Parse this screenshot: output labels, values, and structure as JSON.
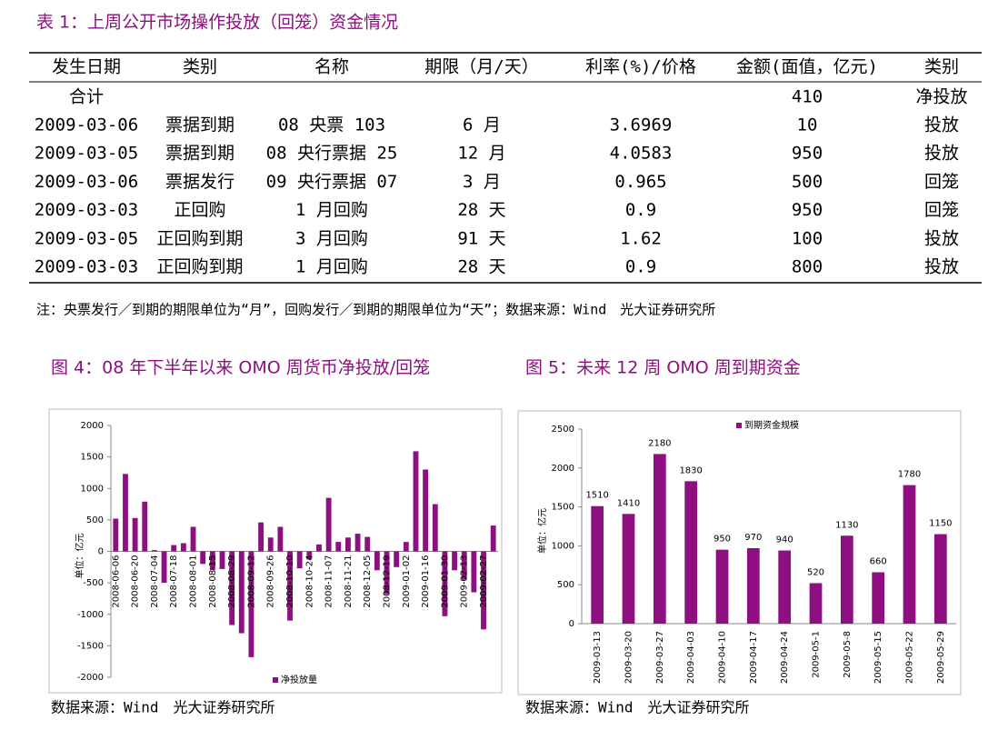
{
  "table": {
    "title": "表 1：上周公开市场操作投放（回笼）资金情况",
    "columns": [
      "发生日期",
      "类别",
      "名称",
      "期限（月/天）",
      "利率(%)/价格",
      "金额(面值，亿元)",
      "类别"
    ],
    "total": {
      "label": "合计",
      "amount": "410",
      "type": "净投放"
    },
    "rows": [
      [
        "2009-03-06",
        "票据到期",
        "08 央票 103",
        "6 月",
        "3.6969",
        "10",
        "投放"
      ],
      [
        "2009-03-05",
        "票据到期",
        "08 央行票据 25",
        "12 月",
        "4.0583",
        "950",
        "投放"
      ],
      [
        "2009-03-06",
        "票据发行",
        "09 央行票据 07",
        "3 月",
        "0.965",
        "500",
        "回笼"
      ],
      [
        "2009-03-03",
        "正回购",
        "1 月回购",
        "28 天",
        "0.9",
        "950",
        "回笼"
      ],
      [
        "2009-03-05",
        "正回购到期",
        "3 月回购",
        "91 天",
        "1.62",
        "100",
        "投放"
      ],
      [
        "2009-03-03",
        "正回购到期",
        "1 月回购",
        "28 天",
        "0.9",
        "800",
        "投放"
      ]
    ],
    "note": "注：央票发行／到期的期限单位为“月”，回购发行／到期的期限单位为“天”；数据来源：Wind　光大证券研究所"
  },
  "chart_data": [
    {
      "type": "bar",
      "title": "图 4：08 年下半年以来 OMO 周货币净投放/回笼",
      "y_label": "单位：亿元",
      "legend": "bottom",
      "source": "数据来源：Wind　光大证券研究所",
      "categories": [
        "2008-06-06",
        null,
        "2008-06-20",
        null,
        "2008-07-04",
        null,
        "2008-07-18",
        null,
        "2008-08-01",
        null,
        "2008-08-15",
        null,
        "2008-08-29",
        null,
        "2008-09-12",
        null,
        "2008-09-26",
        null,
        "2008-10-10",
        null,
        "2008-10-24",
        null,
        "2008-11-07",
        null,
        "2008-11-21",
        null,
        "2008-12-05",
        null,
        "2008-12-19",
        null,
        "2009-01-02",
        null,
        "2009-01-16",
        null,
        "2009-01-30",
        null,
        "2009-02-13",
        null,
        "2009-02-27",
        null
      ],
      "series": [
        {
          "name": "净投放量",
          "color": "#8e0f80",
          "values": [
            520,
            1230,
            530,
            790,
            20,
            -500,
            100,
            130,
            390,
            -200,
            -300,
            -280,
            -1170,
            -1300,
            -1680,
            460,
            220,
            390,
            -1100,
            -270,
            -130,
            110,
            850,
            150,
            220,
            280,
            230,
            -300,
            -680,
            -250,
            150,
            1590,
            1300,
            750,
            -1030,
            -300,
            -450,
            -650,
            -1240,
            410
          ]
        }
      ],
      "ylim": [
        -2000,
        2000
      ],
      "yticks": [
        -2000,
        -1500,
        -1000,
        -500,
        0,
        500,
        1000,
        1500,
        2000
      ]
    },
    {
      "type": "bar",
      "title": "图 5：未来 12 周 OMO 周到期资金",
      "y_label": "单位：亿元",
      "legend": "top",
      "source": "数据来源：Wind　光大证券研究所",
      "data_labels": true,
      "categories": [
        "2009-03-13",
        "2009-03-20",
        "2009-03-27",
        "2009-04-03",
        "2009-04-10",
        "2009-04-17",
        "2009-04-24",
        "2009-05-1",
        "2009-05-8",
        "2009-05-15",
        "2009-05-22",
        "2009-05-29"
      ],
      "series": [
        {
          "name": "到期资金规模",
          "color": "#8e0f80",
          "values": [
            1510,
            1410,
            2180,
            1830,
            950,
            970,
            940,
            520,
            1130,
            660,
            1780,
            1150
          ]
        }
      ],
      "ylim": [
        0,
        2500
      ],
      "yticks": [
        0,
        500,
        1000,
        1500,
        2000,
        2500
      ]
    }
  ]
}
